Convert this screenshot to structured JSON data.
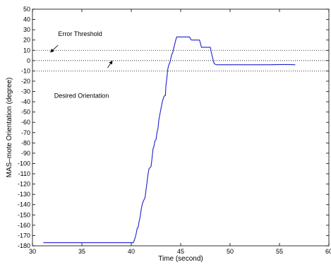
{
  "chart_data": {
    "type": "line",
    "title": "",
    "xlabel": "Time (second)",
    "ylabel": "MAS–mote Orientation (degree)",
    "xlim": [
      30,
      60
    ],
    "ylim": [
      -180,
      50
    ],
    "x_ticks": [
      30,
      35,
      40,
      45,
      50,
      55,
      60
    ],
    "y_ticks": [
      50,
      40,
      30,
      20,
      10,
      0,
      -10,
      -20,
      -30,
      -40,
      -50,
      -60,
      -70,
      -80,
      -90,
      -100,
      -110,
      -120,
      -130,
      -140,
      -150,
      -160,
      -170,
      -180
    ],
    "grid": false,
    "legend": null,
    "colors": {
      "series": "#1f1fd0",
      "threshold": "#000000",
      "axes": "#000000"
    },
    "reference_lines": [
      {
        "y": 10,
        "style": "dotted"
      },
      {
        "y": 0,
        "style": "dotted"
      },
      {
        "y": -10,
        "style": "dotted"
      }
    ],
    "annotations": [
      {
        "text": "Error Threshold",
        "text_pos": [
          32.6,
          24
        ],
        "arrow_from": [
          32.6,
          15
        ],
        "arrow_to": [
          31.8,
          8
        ]
      },
      {
        "text": "Desired Orientation",
        "text_pos": [
          32.2,
          -36
        ],
        "arrow_from": [
          37.6,
          -7
        ],
        "arrow_to": [
          38.1,
          0
        ]
      }
    ],
    "series": [
      {
        "values": [
          [
            31.1,
            -177
          ],
          [
            33,
            -177
          ],
          [
            35,
            -177
          ],
          [
            37,
            -177
          ],
          [
            39,
            -177
          ],
          [
            40.2,
            -177
          ],
          [
            40.25,
            -176
          ],
          [
            40.4,
            -172
          ],
          [
            40.5,
            -168
          ],
          [
            40.6,
            -163
          ],
          [
            40.7,
            -162
          ],
          [
            40.8,
            -156
          ],
          [
            40.9,
            -152
          ],
          [
            41.0,
            -145
          ],
          [
            41.1,
            -140
          ],
          [
            41.2,
            -137
          ],
          [
            41.3,
            -135
          ],
          [
            41.4,
            -133
          ],
          [
            41.5,
            -125
          ],
          [
            41.6,
            -118
          ],
          [
            41.7,
            -110
          ],
          [
            41.8,
            -105
          ],
          [
            41.9,
            -104
          ],
          [
            42.0,
            -103
          ],
          [
            42.1,
            -95
          ],
          [
            42.2,
            -86
          ],
          [
            42.3,
            -83
          ],
          [
            42.4,
            -78
          ],
          [
            42.5,
            -77
          ],
          [
            42.6,
            -70
          ],
          [
            42.7,
            -66
          ],
          [
            42.8,
            -57
          ],
          [
            42.9,
            -52
          ],
          [
            43.0,
            -47
          ],
          [
            43.1,
            -42
          ],
          [
            43.2,
            -38
          ],
          [
            43.3,
            -35
          ],
          [
            43.4,
            -34
          ],
          [
            43.45,
            -34
          ],
          [
            43.5,
            -25
          ],
          [
            43.6,
            -17
          ],
          [
            43.7,
            -8
          ],
          [
            43.8,
            -4
          ],
          [
            43.9,
            -2
          ],
          [
            44.0,
            2
          ],
          [
            44.1,
            6
          ],
          [
            44.2,
            8
          ],
          [
            44.3,
            12
          ],
          [
            44.4,
            16
          ],
          [
            44.5,
            20
          ],
          [
            44.6,
            23
          ],
          [
            45.0,
            23
          ],
          [
            45.5,
            23
          ],
          [
            45.9,
            23
          ],
          [
            46.0,
            21
          ],
          [
            46.1,
            20
          ],
          [
            46.5,
            20
          ],
          [
            46.9,
            20
          ],
          [
            47.0,
            17
          ],
          [
            47.1,
            13
          ],
          [
            47.5,
            13
          ],
          [
            48.0,
            13
          ],
          [
            48.1,
            8
          ],
          [
            48.2,
            4
          ],
          [
            48.3,
            0
          ],
          [
            48.4,
            -3
          ],
          [
            48.6,
            -4
          ],
          [
            49.0,
            -4
          ],
          [
            50.0,
            -4
          ],
          [
            51.0,
            -4
          ],
          [
            52.0,
            -4
          ],
          [
            53.0,
            -4
          ],
          [
            54.0,
            -4
          ],
          [
            55.0,
            -3.8
          ],
          [
            56.0,
            -3.8
          ],
          [
            56.6,
            -4
          ]
        ]
      }
    ]
  }
}
